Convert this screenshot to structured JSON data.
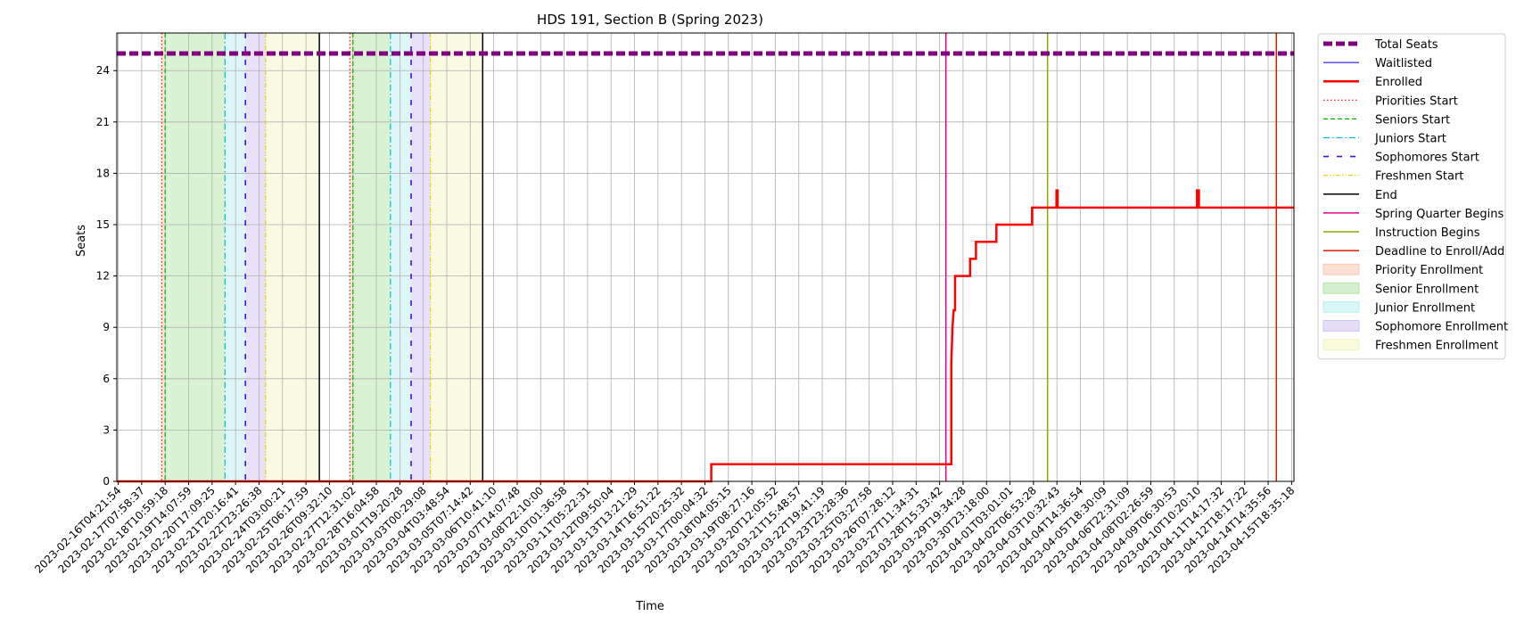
{
  "chart_data": {
    "type": "line",
    "title": "HDS 191, Section B (Spring 2023)",
    "xlabel": "Time",
    "ylabel": "Seats",
    "ylim": [
      0,
      26.2
    ],
    "yticks": [
      0,
      3,
      6,
      9,
      12,
      15,
      18,
      21,
      24
    ],
    "grid": true,
    "legend_position": "outside-right",
    "xtick_labels": [
      "2023-02-16T04:21:54",
      "2023-02-17T07:58:37",
      "2023-02-18T10:59:18",
      "2023-02-19T14:07:59",
      "2023-02-20T17:09:25",
      "2023-02-21T20:16:41",
      "2023-02-22T23:26:38",
      "2023-02-24T03:00:21",
      "2023-02-25T06:17:59",
      "2023-02-26T09:32:10",
      "2023-02-27T12:31:02",
      "2023-02-28T16:04:58",
      "2023-03-01T19:20:28",
      "2023-03-03T00:29:08",
      "2023-03-04T03:48:54",
      "2023-03-05T07:14:42",
      "2023-03-06T10:41:10",
      "2023-03-07T14:07:48",
      "2023-03-08T22:10:00",
      "2023-03-10T01:36:58",
      "2023-03-11T05:22:31",
      "2023-03-12T09:50:04",
      "2023-03-13T13:21:29",
      "2023-03-14T16:51:22",
      "2023-03-15T20:25:32",
      "2023-03-17T00:04:32",
      "2023-03-18T04:05:15",
      "2023-03-19T08:27:16",
      "2023-03-20T12:05:52",
      "2023-03-21T15:48:57",
      "2023-03-22T19:41:19",
      "2023-03-23T23:28:36",
      "2023-03-25T03:27:58",
      "2023-03-26T07:28:12",
      "2023-03-27T11:34:31",
      "2023-03-28T15:33:42",
      "2023-03-29T19:34:28",
      "2023-03-30T23:18:00",
      "2023-04-01T03:01:01",
      "2023-04-02T06:53:28",
      "2023-04-03T10:32:43",
      "2023-04-04T14:36:54",
      "2023-04-05T18:30:09",
      "2023-04-06T22:31:09",
      "2023-04-08T02:26:59",
      "2023-04-09T06:30:53",
      "2023-04-10T10:20:10",
      "2023-04-11T14:17:32",
      "2023-04-12T18:17:22",
      "2023-04-14T14:35:56",
      "2023-04-15T18:35:18"
    ],
    "x_index_range": [
      -0.06,
      50.1
    ],
    "total_seats": 25,
    "enrolled": [
      [
        -0.06,
        0
      ],
      [
        25.27,
        0
      ],
      [
        25.27,
        1
      ],
      [
        35.5,
        1
      ],
      [
        35.5,
        7
      ],
      [
        35.55,
        9
      ],
      [
        35.6,
        10
      ],
      [
        35.66,
        10
      ],
      [
        35.66,
        12
      ],
      [
        36.3,
        12
      ],
      [
        36.3,
        13
      ],
      [
        36.55,
        13
      ],
      [
        36.55,
        14
      ],
      [
        37.42,
        14
      ],
      [
        37.42,
        15
      ],
      [
        38.94,
        15
      ],
      [
        38.94,
        16
      ],
      [
        39.98,
        16
      ],
      [
        39.98,
        17
      ],
      [
        40.03,
        17
      ],
      [
        40.03,
        16
      ],
      [
        45.97,
        16
      ],
      [
        45.97,
        17
      ],
      [
        46.05,
        17
      ],
      [
        46.05,
        16
      ],
      [
        50.1,
        16
      ]
    ],
    "waitlisted": [
      [
        -0.06,
        0
      ],
      [
        50.1,
        0
      ]
    ],
    "phases": [
      {
        "name": "Priority Enrollment",
        "color": "#f4a582",
        "ranges": [
          [
            1.85,
            2.0
          ],
          [
            9.87,
            10.0
          ]
        ]
      },
      {
        "name": "Senior Enrollment",
        "color": "#7fd46a",
        "ranges": [
          [
            2.0,
            4.55
          ],
          [
            10.0,
            11.6
          ]
        ]
      },
      {
        "name": "Junior Enrollment",
        "color": "#8fe3ea",
        "ranges": [
          [
            4.55,
            5.42
          ],
          [
            11.6,
            12.48
          ]
        ]
      },
      {
        "name": "Sophomore Enrollment",
        "color": "#b59cf0",
        "ranges": [
          [
            5.42,
            6.28
          ],
          [
            12.48,
            13.3
          ]
        ]
      },
      {
        "name": "Freshmen Enrollment",
        "color": "#eeee9e",
        "ranges": [
          [
            6.28,
            8.57
          ],
          [
            13.3,
            15.53
          ]
        ]
      }
    ],
    "vlines": {
      "priorities_start": [
        1.85,
        9.87
      ],
      "seniors_start": [
        2.0,
        10.0
      ],
      "juniors_start": [
        4.55,
        11.6
      ],
      "sophomores_start": [
        5.42,
        12.48
      ],
      "freshmen_start": [
        6.28,
        13.3
      ],
      "end": [
        8.57,
        15.53
      ],
      "spring_quarter_begins": [
        35.27
      ],
      "instruction_begins": [
        39.6
      ],
      "deadline": [
        49.35
      ]
    },
    "legend": [
      {
        "label": "Total Seats",
        "kind": "dashline",
        "color": "#800080",
        "width": 5,
        "dash": "10,4"
      },
      {
        "label": "Waitlisted",
        "kind": "line",
        "color": "#0000ff",
        "width": 1,
        "dash": ""
      },
      {
        "label": "Enrolled",
        "kind": "line",
        "color": "#ff0000",
        "width": 2.5,
        "dash": ""
      },
      {
        "label": "Priorities Start",
        "kind": "line",
        "color": "#ff0000",
        "width": 1.2,
        "dash": "1.5,2.5"
      },
      {
        "label": "Seniors Start",
        "kind": "line",
        "color": "#00b000",
        "width": 1.2,
        "dash": "5,3"
      },
      {
        "label": "Juniors Start",
        "kind": "line",
        "color": "#00bcd4",
        "width": 1.2,
        "dash": "7,3,1.5,3"
      },
      {
        "label": "Sophomores Start",
        "kind": "line",
        "color": "#4b0fd8",
        "width": 1.6,
        "dash": "6,9"
      },
      {
        "label": "Freshmen Start",
        "kind": "line",
        "color": "#e6d200",
        "width": 1.2,
        "dash": "5,2,1.5,2,1.5,2"
      },
      {
        "label": "End",
        "kind": "line",
        "color": "#000000",
        "width": 1.5,
        "dash": ""
      },
      {
        "label": "Spring Quarter Begins",
        "kind": "line",
        "color": "#e6008a",
        "width": 1.5,
        "dash": ""
      },
      {
        "label": "Instruction Begins",
        "kind": "line",
        "color": "#8aa800",
        "width": 1.5,
        "dash": ""
      },
      {
        "label": "Deadline to Enroll/Add",
        "kind": "line",
        "color": "#e01a00",
        "width": 1.5,
        "dash": ""
      },
      {
        "label": "Priority Enrollment",
        "kind": "patch",
        "color": "#f4a582",
        "width": 0,
        "dash": ""
      },
      {
        "label": "Senior Enrollment",
        "kind": "patch",
        "color": "#7fd46a",
        "width": 0,
        "dash": ""
      },
      {
        "label": "Junior Enrollment",
        "kind": "patch",
        "color": "#8fe3ea",
        "width": 0,
        "dash": ""
      },
      {
        "label": "Sophomore Enrollment",
        "kind": "patch",
        "color": "#b59cf0",
        "width": 0,
        "dash": ""
      },
      {
        "label": "Freshmen Enrollment",
        "kind": "patch",
        "color": "#eeee9e",
        "width": 0,
        "dash": ""
      }
    ]
  }
}
